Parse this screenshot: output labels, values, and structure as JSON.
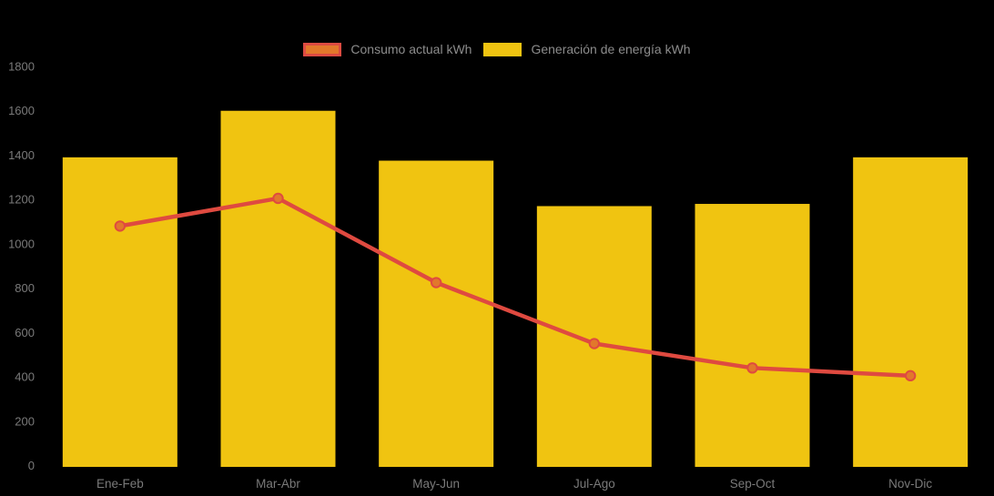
{
  "colors": {
    "background": "#000000",
    "bar": "#F0C411",
    "line": "#DF4A40",
    "point_fill": "#E2782B",
    "point_stroke": "#DF4A40",
    "axis_text": "#7A7A7A",
    "legend_text": "#8C8C8C"
  },
  "legend": {
    "items": [
      {
        "label": "Consumo actual kWh",
        "swatch_fill": "#E2782B",
        "swatch_border": "#DD4B42"
      },
      {
        "label": "Generación de energía kWh",
        "swatch_fill": "#F0C411",
        "swatch_border": "#F0C411"
      }
    ]
  },
  "chart_data": {
    "type": "bar",
    "subtype": "combo-bar-line",
    "title": "",
    "xlabel": "",
    "ylabel": "",
    "categories": [
      "Ene-Feb",
      "Mar-Abr",
      "May-Jun",
      "Jul-Ago",
      "Sep-Oct",
      "Nov-Dic"
    ],
    "series": [
      {
        "name": "Consumo actual kWh",
        "type": "line",
        "values": [
          1080,
          1205,
          825,
          550,
          440,
          405
        ]
      },
      {
        "name": "Generación de energía kWh",
        "type": "bar",
        "values": [
          1390,
          1600,
          1375,
          1170,
          1180,
          1390
        ]
      }
    ],
    "ylim": [
      0,
      1800
    ],
    "ytick_step": 200,
    "yticks": [
      0,
      200,
      400,
      600,
      800,
      1000,
      1200,
      1400,
      1600,
      1800
    ],
    "grid": false,
    "legend_position": "top"
  }
}
